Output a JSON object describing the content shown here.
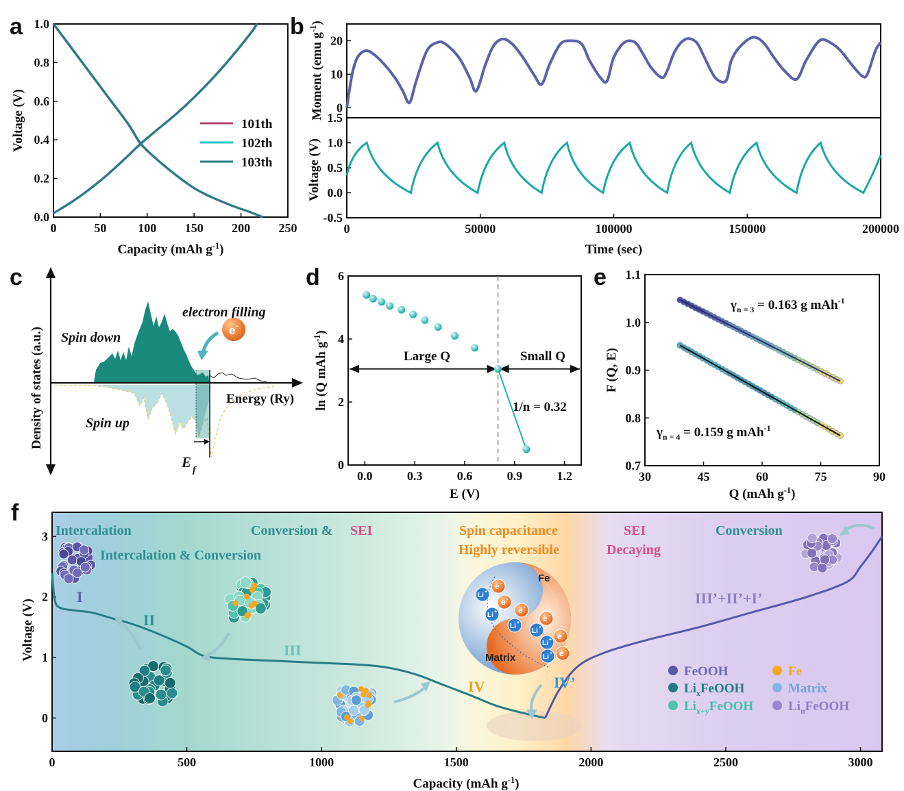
{
  "panels": {
    "a": "a",
    "b": "b",
    "c": "c",
    "d": "d",
    "e": "e",
    "f": "f"
  },
  "colors": {
    "pink": "#b3446c",
    "cyan": "#20c4c0",
    "teal": "#2a7c86",
    "purple": "#5b5fa8",
    "moment": "#5d62a9",
    "voltage_b": "#1aa9a5",
    "dos_fill": "#1a8a7c",
    "dos_up": "#b9dde3",
    "orange": "#f08a1f",
    "sei_pink": "#d8508a",
    "conv_teal": "#2e8f93"
  },
  "panel_c": {
    "ylabel": "Density of states (a.u.)",
    "xlabel": "Energy (Ry)",
    "spin_down": "Spin down",
    "spin_up": "Spin up",
    "electron_filling": "electron filling",
    "electron": "e",
    "electron_sup": "-",
    "ef": "E",
    "ef_sub": "f"
  },
  "panel_f_text": {
    "intercalation": "Intercalation",
    "intercalation_conversion": "Intercalation & Conversion",
    "conversion_sei_a": "Conversion &",
    "conversion_sei_b": "SEI",
    "spin_capacitance": "Spin capacitance",
    "highly_reversible": "Highly reversible",
    "sei": "SEI",
    "decaying": "Decaying",
    "conversion": "Conversion",
    "stage_I": "I",
    "stage_II": "II",
    "stage_III": "III",
    "stage_IV": "IV",
    "stage_IVp": "IV’",
    "stage_rev": "III’+II’+I’",
    "yin_fe": "Fe",
    "yin_matrix": "Matrix",
    "li": "Li",
    "li_sup": "+",
    "e": "e",
    "e_sup": "-"
  },
  "legend_f": [
    {
      "label": "FeOOH",
      "sub": "",
      "post": "",
      "color": "#5a58a6",
      "text_color": "#6a68b4"
    },
    {
      "label": "Fe",
      "sub": "",
      "post": "",
      "color": "#f5a623",
      "text_color": "#f5a623"
    },
    {
      "label": "Li",
      "sub": "x",
      "post": "FeOOH",
      "color": "#1f7d80",
      "text_color": "#1f7d80"
    },
    {
      "label": "Matrix",
      "sub": "",
      "post": "",
      "color": "#7fb6df",
      "text_color": "#6aa6d8"
    },
    {
      "label": "Li",
      "sub": "x+y",
      "post": "FeOOH",
      "color": "#4cc3ad",
      "text_color": "#3fbfa7"
    },
    {
      "label": "Li",
      "sub": "n",
      "post": "FeOOH",
      "color": "#9b86c9",
      "text_color": "#8f7dc3"
    }
  ],
  "chart_data": [
    {
      "id": "a",
      "type": "line",
      "xlabel": "Capacity (mAh g⁻¹)",
      "ylabel": "Voltage (V)",
      "xlim": [
        0,
        250
      ],
      "ylim": [
        0,
        1.0
      ],
      "xticks": [
        0,
        50,
        100,
        150,
        200,
        250
      ],
      "yticks": [
        0.0,
        0.2,
        0.4,
        0.6,
        0.8,
        1.0
      ],
      "legend": "right",
      "series": [
        {
          "name": "101th",
          "color": "#b3446c"
        },
        {
          "name": "102th",
          "color": "#20c4c0"
        },
        {
          "name": "103th",
          "color": "#2a7c86"
        }
      ],
      "discharge": {
        "x": [
          0,
          20,
          40,
          60,
          80,
          93,
          110,
          130,
          150,
          170,
          190,
          210,
          223
        ],
        "y": [
          1.0,
          0.87,
          0.74,
          0.61,
          0.48,
          0.38,
          0.3,
          0.22,
          0.15,
          0.1,
          0.06,
          0.025,
          0.0
        ]
      },
      "charge": {
        "x": [
          0,
          20,
          40,
          60,
          80,
          93,
          110,
          130,
          150,
          170,
          190,
          210,
          217
        ],
        "y": [
          0.02,
          0.08,
          0.15,
          0.23,
          0.32,
          0.38,
          0.45,
          0.53,
          0.62,
          0.72,
          0.83,
          0.95,
          1.0
        ]
      }
    },
    {
      "id": "b-moment",
      "type": "line",
      "ylabel": "Moment (emu g⁻¹)",
      "xlim": [
        0,
        200000
      ],
      "ylim": [
        -3,
        25
      ],
      "yticks": [
        0,
        10,
        20
      ],
      "color": "#5d62a9",
      "x": [
        0,
        2000,
        4000,
        7000,
        10000,
        14000,
        18000,
        21000,
        23500,
        26000,
        30000,
        34000,
        37000,
        42000,
        46000,
        48500,
        52000,
        55000,
        58500,
        62000,
        66000,
        70000,
        73000,
        76000,
        80000,
        84000,
        88000,
        91000,
        95000,
        97500,
        100000,
        104000,
        108000,
        111000,
        114000,
        118000,
        120000,
        123000,
        127000,
        131000,
        134000,
        138000,
        142000,
        144000,
        147000,
        152000,
        156000,
        160000,
        164000,
        168500,
        172000,
        177000,
        181000,
        185000,
        189000,
        193000,
        195000,
        198000,
        200000
      ],
      "y": [
        0,
        10,
        15,
        17,
        16,
        13,
        9,
        5,
        1.5,
        8,
        17,
        19.5,
        19,
        15,
        9,
        5,
        13,
        18.5,
        20.5,
        19,
        15,
        10,
        7,
        13,
        19,
        20,
        19,
        14,
        9,
        8,
        15,
        19.5,
        19.5,
        16,
        12,
        9,
        11,
        17,
        20.5,
        19.5,
        15,
        9,
        8,
        14,
        18,
        21,
        19.5,
        15,
        11,
        8.5,
        14,
        20,
        19.5,
        17,
        13,
        9.5,
        10,
        17,
        19.5
      ]
    },
    {
      "id": "b-voltage",
      "type": "line",
      "xlabel": "Time (sec)",
      "ylabel": "Voltage (V)",
      "xlim": [
        0,
        200000
      ],
      "ylim": [
        -0.5,
        1.5
      ],
      "xticks": [
        0,
        50000,
        100000,
        150000,
        200000
      ],
      "yticks": [
        -0.5,
        0.0,
        0.5,
        1.0,
        1.5
      ],
      "color": "#1aa9a5",
      "peaks": [
        7500,
        34000,
        59000,
        82500,
        106000,
        129000,
        153500,
        177500
      ],
      "valleys": [
        24000,
        49000,
        73000,
        96000,
        120000,
        143500,
        168500,
        193500
      ]
    },
    {
      "id": "d",
      "type": "scatter",
      "xlabel": "E (V)",
      "ylabel": "ln (Q mAh g⁻¹)",
      "xlim": [
        -0.1,
        1.3
      ],
      "ylim": [
        0,
        6
      ],
      "xticks": [
        0.0,
        0.3,
        0.6,
        0.9,
        1.2
      ],
      "yticks": [
        0,
        2,
        4,
        6
      ],
      "x": [
        0.01,
        0.05,
        0.1,
        0.15,
        0.22,
        0.29,
        0.36,
        0.44,
        0.54,
        0.66,
        0.8,
        0.97
      ],
      "y": [
        5.4,
        5.28,
        5.18,
        5.05,
        4.93,
        4.78,
        4.6,
        4.38,
        4.1,
        3.72,
        3.05,
        0.5
      ],
      "divider": 0.8,
      "labels": {
        "large": "Large Q",
        "small": "Small Q",
        "slope": "1/n = 0.32"
      }
    },
    {
      "id": "e",
      "type": "scatter",
      "xlabel": "Q (mAh g⁻¹)",
      "ylabel": "F (Q, E)",
      "xlim": [
        30,
        90
      ],
      "ylim": [
        0.7,
        1.1
      ],
      "xticks": [
        30,
        45,
        60,
        75,
        90
      ],
      "yticks": [
        0.7,
        0.8,
        0.9,
        1.0,
        1.1
      ],
      "series": [
        {
          "name": "n = 3",
          "x0": 39,
          "y0": 1.047,
          "x1": 80,
          "y1": 0.877,
          "label_main": "γ",
          "label_sub": "n = 3",
          "label_rest": " = 0.163 g mAh",
          "label_sup": "-1"
        },
        {
          "name": "n = 4",
          "x0": 39,
          "y0": 0.952,
          "x1": 80,
          "y1": 0.763,
          "label_main": "γ",
          "label_sub": "n = 4",
          "label_rest": " = 0.159 g mAh",
          "label_sup": "-1"
        }
      ]
    },
    {
      "id": "f",
      "type": "line",
      "xlabel": "Capacity (mAh g⁻¹)",
      "ylabel": "Voltage (V)",
      "xlim": [
        0,
        3080
      ],
      "ylim": [
        -0.55,
        3.4
      ],
      "xticks": [
        0,
        500,
        1000,
        1500,
        2000,
        2500,
        3000
      ],
      "yticks": [
        0,
        1,
        2,
        3
      ],
      "discharge": {
        "x": [
          0,
          10,
          30,
          80,
          150,
          220,
          300,
          400,
          500,
          560,
          650,
          800,
          1000,
          1150,
          1250,
          1350,
          1450,
          1550,
          1650,
          1750,
          1830
        ],
        "y": [
          2.4,
          1.95,
          1.82,
          1.78,
          1.74,
          1.65,
          1.55,
          1.38,
          1.18,
          1.03,
          0.98,
          0.95,
          0.91,
          0.88,
          0.83,
          0.72,
          0.55,
          0.38,
          0.2,
          0.08,
          0.0
        ]
      },
      "charge": {
        "x": [
          1830,
          1880,
          1950,
          2050,
          2200,
          2400,
          2600,
          2800,
          2950,
          3000,
          3050,
          3080
        ],
        "y": [
          0.0,
          0.45,
          0.85,
          1.08,
          1.28,
          1.5,
          1.75,
          2.0,
          2.25,
          2.5,
          2.8,
          3.0
        ]
      }
    }
  ]
}
